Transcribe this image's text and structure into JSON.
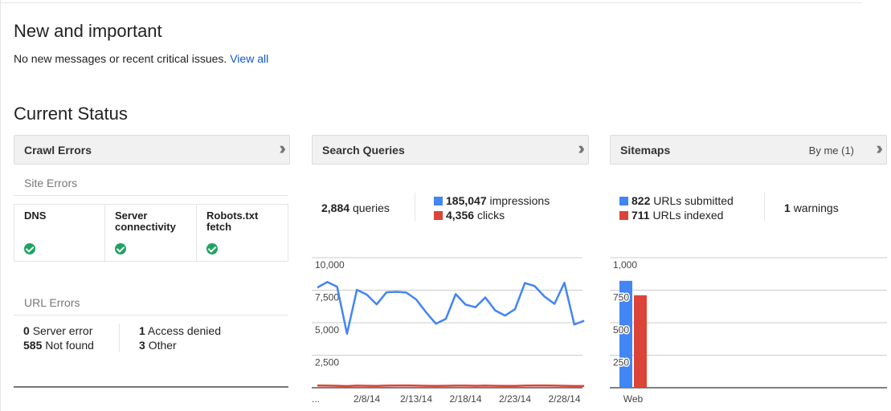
{
  "new_important": {
    "title": "New and important",
    "message": "No new messages or recent critical issues.",
    "link": "View all"
  },
  "current_status": {
    "title": "Current Status"
  },
  "crawl_errors": {
    "title": "Crawl Errors",
    "site_errors_label": "Site Errors",
    "site_errors": [
      {
        "label": "DNS",
        "status": "ok"
      },
      {
        "label": "Server connectivity",
        "status": "ok"
      },
      {
        "label": "Robots.txt fetch",
        "status": "ok"
      }
    ],
    "url_errors_label": "URL Errors",
    "url_errors": [
      {
        "count": "0",
        "label": "Server error"
      },
      {
        "count": "585",
        "label": "Not found"
      },
      {
        "count": "1",
        "label": "Access denied"
      },
      {
        "count": "3",
        "label": "Other"
      }
    ]
  },
  "search_queries": {
    "title": "Search Queries",
    "queries_count": "2,884",
    "queries_label": "queries",
    "impressions_count": "185,047",
    "impressions_label": "impressions",
    "clicks_count": "4,356",
    "clicks_label": "clicks"
  },
  "sitemaps": {
    "title": "Sitemaps",
    "filter": "By me (1)",
    "submitted_count": "822",
    "submitted_label": "URLs submitted",
    "indexed_count": "711",
    "indexed_label": "URLs indexed",
    "warnings_count": "1",
    "warnings_label": "warnings"
  },
  "colors": {
    "blue": "#4285f4",
    "red": "#db4437",
    "green": "#1ea362",
    "link": "#1155cc"
  },
  "chart_data": [
    {
      "type": "line",
      "ylim": [
        0,
        10000
      ],
      "yticks": [
        "2,500",
        "5,000",
        "7,500",
        "10,000"
      ],
      "ytick_values": [
        2500,
        5000,
        7500,
        10000
      ],
      "x": [
        "2/3/14",
        "2/4/14",
        "2/5/14",
        "2/6/14",
        "2/7/14",
        "2/8/14",
        "2/9/14",
        "2/10/14",
        "2/11/14",
        "2/12/14",
        "2/13/14",
        "2/14/14",
        "2/15/14",
        "2/16/14",
        "2/17/14",
        "2/18/14",
        "2/19/14",
        "2/20/14",
        "2/21/14",
        "2/22/14",
        "2/23/14",
        "2/24/14",
        "2/25/14",
        "2/26/14",
        "2/27/14",
        "2/28/14",
        "3/1/14",
        "3/2/14"
      ],
      "xticks": [
        "...",
        "2/8/14",
        "2/13/14",
        "2/18/14",
        "2/23/14",
        "2/28/14"
      ],
      "xtick_index": [
        0,
        5,
        10,
        15,
        20,
        25
      ],
      "series": [
        {
          "name": "impressions",
          "color": "#4285f4",
          "values": [
            7700,
            8130,
            7760,
            4150,
            7530,
            7160,
            6410,
            7340,
            7380,
            7320,
            6790,
            5800,
            4920,
            5290,
            7200,
            6390,
            6190,
            6940,
            5940,
            5550,
            6040,
            8050,
            7810,
            7000,
            6450,
            8070,
            4860,
            5150
          ]
        },
        {
          "name": "clicks",
          "color": "#db4437",
          "values": [
            170,
            160,
            150,
            120,
            160,
            150,
            140,
            160,
            170,
            170,
            160,
            150,
            140,
            150,
            160,
            160,
            150,
            160,
            150,
            140,
            140,
            160,
            170,
            170,
            160,
            150,
            130,
            130
          ]
        }
      ]
    },
    {
      "type": "bar",
      "ylim": [
        0,
        1000
      ],
      "yticks": [
        "250",
        "500",
        "750",
        "1,000"
      ],
      "ytick_values": [
        250,
        500,
        750,
        1000
      ],
      "categories": [
        "Web"
      ],
      "series": [
        {
          "name": "URLs submitted",
          "color": "#4285f4",
          "values": [
            822
          ]
        },
        {
          "name": "URLs indexed",
          "color": "#db4437",
          "values": [
            711
          ]
        }
      ]
    }
  ]
}
